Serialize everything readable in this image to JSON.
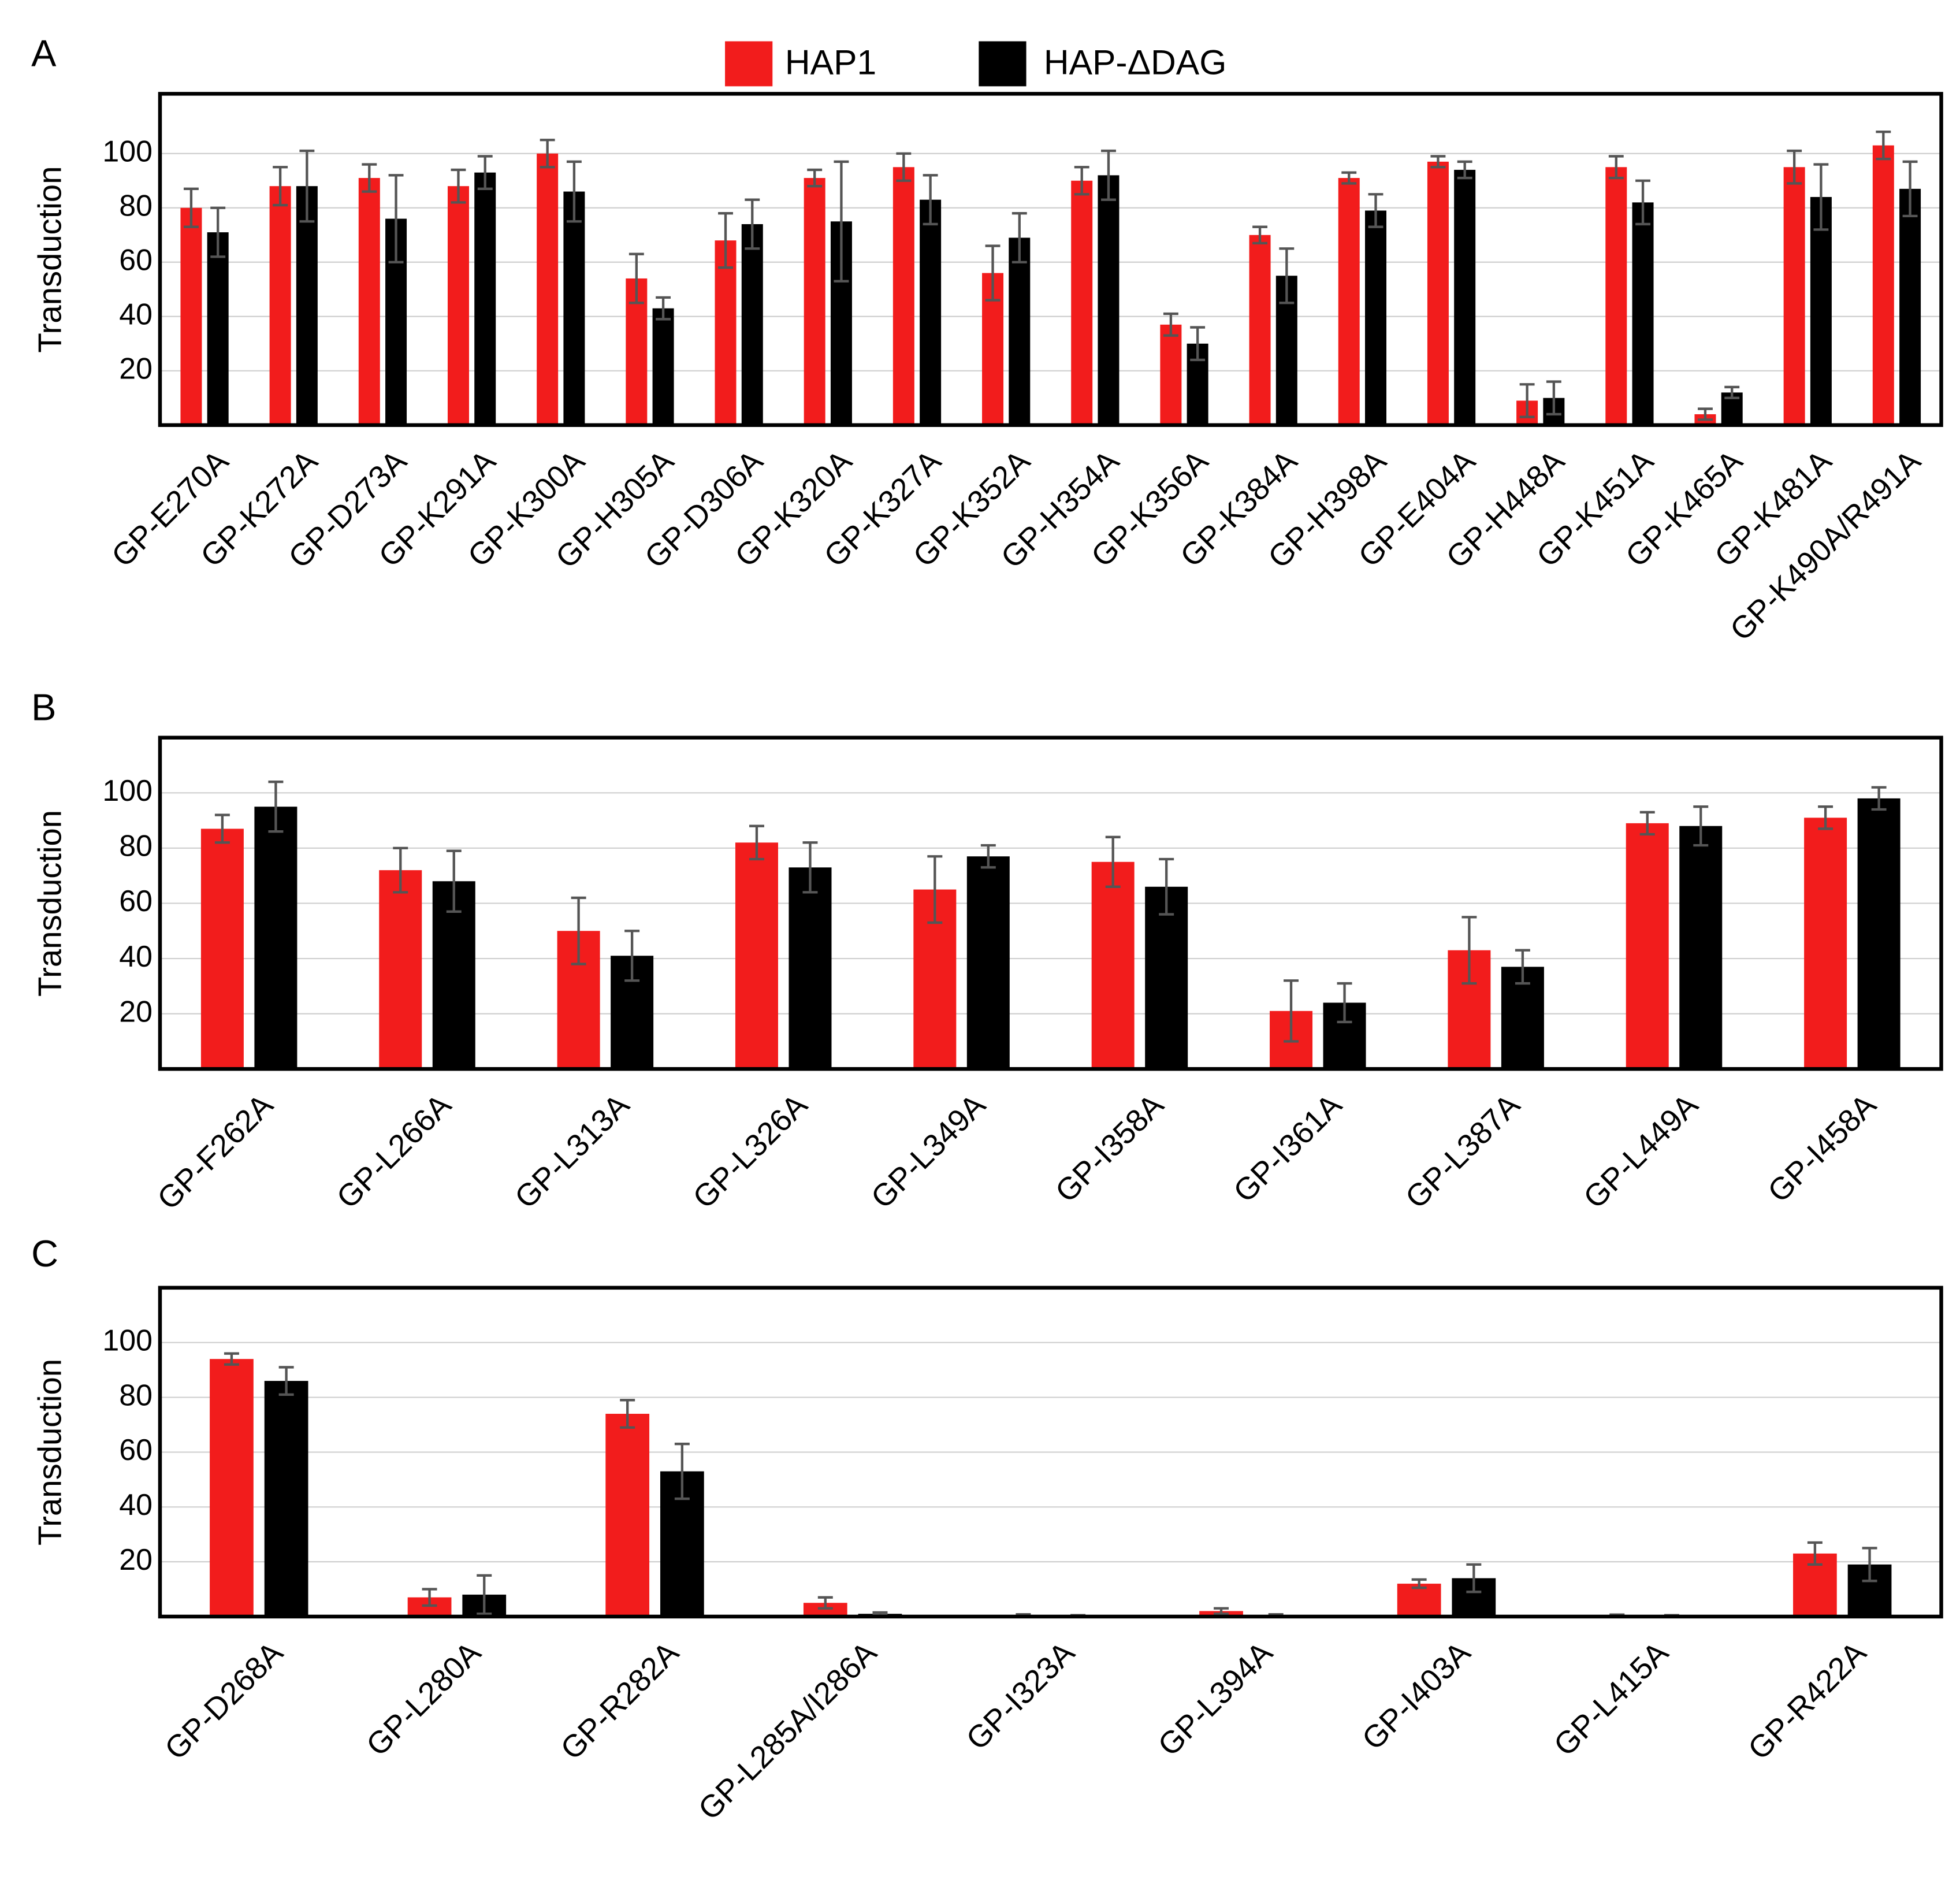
{
  "chart_data": [
    {
      "type": "bar",
      "panel": "A",
      "y_label": "Transduction",
      "categories": [
        "GP-E270A",
        "GP-K272A",
        "GP-D273A",
        "GP-K291A",
        "GP-K300A",
        "GP-H305A",
        "GP-D306A",
        "GP-K320A",
        "GP-K327A",
        "GP-K352A",
        "GP-H354A",
        "GP-K356A",
        "GP-K384A",
        "GP-H398A",
        "GP-E404A",
        "GP-H448A",
        "GP-K451A",
        "GP-K465A",
        "GP-K481A",
        "GP-K490A/R491A"
      ],
      "series": [
        {
          "name": "HAP1",
          "color": "#f21c1c",
          "values": [
            80,
            88,
            91,
            88,
            100,
            54,
            68,
            91,
            95,
            56,
            90,
            37,
            70,
            91,
            97,
            9,
            95,
            4,
            95,
            103
          ],
          "errors": [
            7,
            7,
            5,
            6,
            5,
            9,
            10,
            3,
            5,
            10,
            5,
            4,
            3,
            2,
            2,
            6,
            4,
            2,
            6,
            5
          ]
        },
        {
          "name": "HAP-ΔDAG",
          "color": "#000000",
          "values": [
            71,
            88,
            76,
            93,
            86,
            43,
            74,
            75,
            83,
            69,
            92,
            30,
            55,
            79,
            94,
            10,
            82,
            12,
            84,
            87
          ],
          "errors": [
            9,
            13,
            16,
            6,
            11,
            4,
            9,
            22,
            9,
            9,
            9,
            6,
            10,
            6,
            3,
            6,
            8,
            2,
            12,
            10
          ]
        }
      ],
      "ylim": [
        0,
        122
      ],
      "yticks": [
        20,
        40,
        60,
        80,
        100
      ],
      "grid": true,
      "legend": "top"
    },
    {
      "type": "bar",
      "panel": "B",
      "y_label": "Transduction",
      "categories": [
        "GP-F262A",
        "GP-L266A",
        "GP-L313A",
        "GP-L326A",
        "GP-L349A",
        "GP-I358A",
        "GP-I361A",
        "GP-L387A",
        "GP-L449A",
        "GP-I458A"
      ],
      "series": [
        {
          "name": "HAP1",
          "color": "#f21c1c",
          "values": [
            87,
            72,
            50,
            82,
            65,
            75,
            21,
            43,
            89,
            91
          ],
          "errors": [
            5,
            8,
            12,
            6,
            12,
            9,
            11,
            12,
            4,
            4
          ]
        },
        {
          "name": "HAP-ΔDAG",
          "color": "#000000",
          "values": [
            95,
            68,
            41,
            73,
            77,
            66,
            24,
            37,
            88,
            98
          ],
          "errors": [
            9,
            11,
            9,
            9,
            4,
            10,
            7,
            6,
            7,
            4
          ]
        }
      ],
      "ylim": [
        0,
        120
      ],
      "yticks": [
        20,
        40,
        60,
        80,
        100
      ],
      "grid": true
    },
    {
      "type": "bar",
      "panel": "C",
      "y_label": "Transduction",
      "categories": [
        "GP-D268A",
        "GP-L280A",
        "GP-R282A",
        "GP-L285A/I286A",
        "GP-I323A",
        "GP-L394A",
        "GP-I403A",
        "GP-L415A",
        "GP-R422A"
      ],
      "series": [
        {
          "name": "HAP1",
          "color": "#f21c1c",
          "values": [
            94,
            7,
            74,
            5,
            0.5,
            2,
            12,
            0.5,
            23
          ],
          "errors": [
            2,
            3,
            5,
            2,
            0.3,
            1,
            1.5,
            0.2,
            4
          ]
        },
        {
          "name": "HAP-ΔDAG",
          "color": "#000000",
          "values": [
            86,
            8,
            53,
            1,
            0.3,
            0.5,
            14,
            0.3,
            19
          ],
          "errors": [
            5,
            7,
            10,
            0.5,
            0.2,
            0.3,
            5,
            0.2,
            6
          ]
        }
      ],
      "ylim": [
        0,
        120
      ],
      "yticks": [
        20,
        40,
        60,
        80,
        100
      ],
      "grid": true
    }
  ]
}
